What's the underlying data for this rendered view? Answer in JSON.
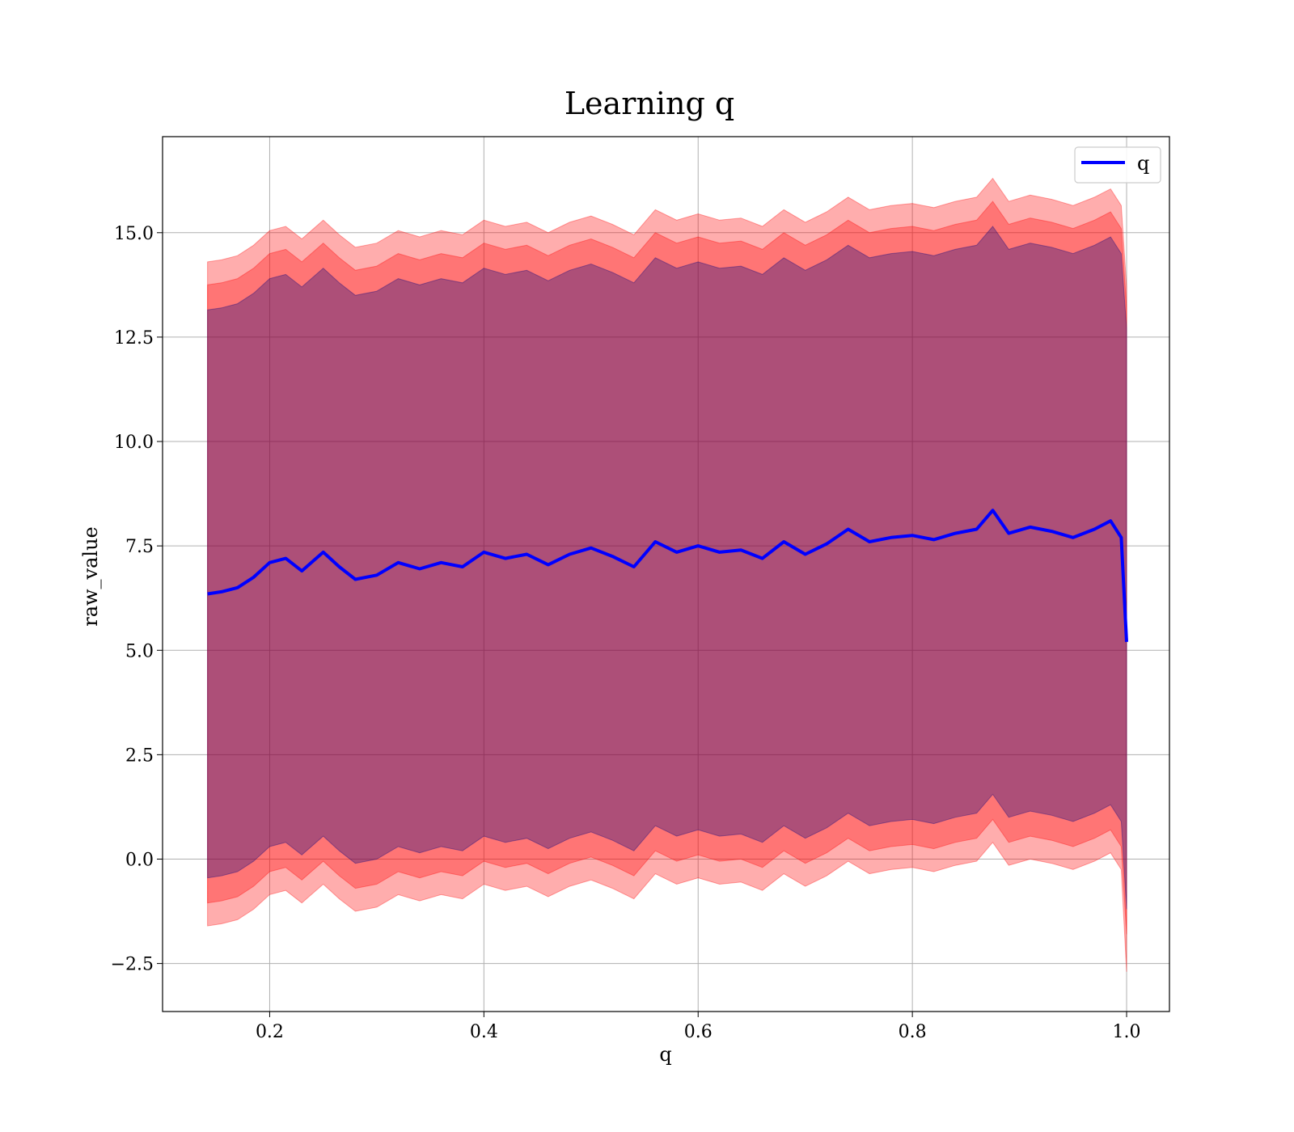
{
  "chart_data": {
    "type": "line",
    "title": "Learning q",
    "xlabel": "q",
    "ylabel": "raw_value",
    "xlim": [
      0.1,
      1.04
    ],
    "ylim": [
      -3.65,
      17.3
    ],
    "xticks": [
      0.2,
      0.4,
      0.6,
      0.8,
      1.0
    ],
    "xtick_labels": [
      "0.2",
      "0.4",
      "0.6",
      "0.8",
      "1.0"
    ],
    "yticks": [
      -2.5,
      0.0,
      2.5,
      5.0,
      7.5,
      10.0,
      12.5,
      15.0
    ],
    "ytick_labels": [
      "−2.5",
      "0.0",
      "2.5",
      "5.0",
      "7.5",
      "10.0",
      "12.5",
      "15.0"
    ],
    "grid": true,
    "legend": {
      "position": "top-right",
      "entries": [
        "q"
      ]
    },
    "series": [
      {
        "name": "q",
        "color": "#0000ff",
        "x": [
          0.142,
          0.155,
          0.17,
          0.185,
          0.2,
          0.215,
          0.23,
          0.25,
          0.265,
          0.28,
          0.3,
          0.32,
          0.34,
          0.36,
          0.38,
          0.4,
          0.42,
          0.44,
          0.46,
          0.48,
          0.5,
          0.52,
          0.54,
          0.56,
          0.58,
          0.6,
          0.62,
          0.64,
          0.66,
          0.68,
          0.7,
          0.72,
          0.74,
          0.76,
          0.78,
          0.8,
          0.82,
          0.84,
          0.86,
          0.875,
          0.89,
          0.91,
          0.93,
          0.95,
          0.97,
          0.985,
          0.995,
          1.0
        ],
        "y": [
          6.35,
          6.4,
          6.5,
          6.75,
          7.1,
          7.2,
          6.9,
          7.35,
          7.0,
          6.7,
          6.8,
          7.1,
          6.95,
          7.1,
          7.0,
          7.35,
          7.2,
          7.3,
          7.05,
          7.3,
          7.45,
          7.25,
          7.0,
          7.6,
          7.35,
          7.5,
          7.35,
          7.4,
          7.2,
          7.6,
          7.3,
          7.55,
          7.9,
          7.6,
          7.7,
          7.75,
          7.65,
          7.8,
          7.9,
          8.35,
          7.8,
          7.95,
          7.85,
          7.7,
          7.9,
          8.1,
          7.7,
          5.2
        ]
      }
    ],
    "bands": [
      {
        "color": "#ff0000",
        "opacity": 0.32,
        "x": [
          0.142,
          0.155,
          0.17,
          0.185,
          0.2,
          0.215,
          0.23,
          0.25,
          0.265,
          0.28,
          0.3,
          0.32,
          0.34,
          0.36,
          0.38,
          0.4,
          0.42,
          0.44,
          0.46,
          0.48,
          0.5,
          0.52,
          0.54,
          0.56,
          0.58,
          0.6,
          0.62,
          0.64,
          0.66,
          0.68,
          0.7,
          0.72,
          0.74,
          0.76,
          0.78,
          0.8,
          0.82,
          0.84,
          0.86,
          0.875,
          0.89,
          0.91,
          0.93,
          0.95,
          0.97,
          0.985,
          0.995,
          1.0
        ],
        "upper": [
          14.3,
          14.35,
          14.45,
          14.7,
          15.05,
          15.15,
          14.85,
          15.3,
          14.95,
          14.65,
          14.75,
          15.05,
          14.9,
          15.05,
          14.95,
          15.3,
          15.15,
          15.25,
          15.0,
          15.25,
          15.4,
          15.2,
          14.95,
          15.55,
          15.3,
          15.45,
          15.3,
          15.35,
          15.15,
          15.55,
          15.25,
          15.5,
          15.85,
          15.55,
          15.65,
          15.7,
          15.6,
          15.75,
          15.85,
          16.3,
          15.75,
          15.9,
          15.8,
          15.65,
          15.85,
          16.05,
          15.65,
          13.7
        ],
        "lower": [
          -1.6,
          -1.55,
          -1.45,
          -1.2,
          -0.85,
          -0.75,
          -1.05,
          -0.6,
          -0.95,
          -1.25,
          -1.15,
          -0.85,
          -1.0,
          -0.85,
          -0.95,
          -0.6,
          -0.75,
          -0.65,
          -0.9,
          -0.65,
          -0.5,
          -0.7,
          -0.95,
          -0.35,
          -0.6,
          -0.45,
          -0.6,
          -0.55,
          -0.75,
          -0.35,
          -0.65,
          -0.4,
          -0.05,
          -0.35,
          -0.25,
          -0.2,
          -0.3,
          -0.15,
          -0.05,
          0.4,
          -0.15,
          0.0,
          -0.1,
          -0.25,
          -0.05,
          0.15,
          -0.25,
          -2.7
        ]
      },
      {
        "color": "#ff0000",
        "opacity": 0.32,
        "x": [
          0.142,
          0.155,
          0.17,
          0.185,
          0.2,
          0.215,
          0.23,
          0.25,
          0.265,
          0.28,
          0.3,
          0.32,
          0.34,
          0.36,
          0.38,
          0.4,
          0.42,
          0.44,
          0.46,
          0.48,
          0.5,
          0.52,
          0.54,
          0.56,
          0.58,
          0.6,
          0.62,
          0.64,
          0.66,
          0.68,
          0.7,
          0.72,
          0.74,
          0.76,
          0.78,
          0.8,
          0.82,
          0.84,
          0.86,
          0.875,
          0.89,
          0.91,
          0.93,
          0.95,
          0.97,
          0.985,
          0.995,
          1.0
        ],
        "upper": [
          13.75,
          13.8,
          13.9,
          14.15,
          14.5,
          14.6,
          14.3,
          14.75,
          14.4,
          14.1,
          14.2,
          14.5,
          14.35,
          14.5,
          14.4,
          14.75,
          14.6,
          14.7,
          14.45,
          14.7,
          14.85,
          14.65,
          14.4,
          15.0,
          14.75,
          14.9,
          14.75,
          14.8,
          14.6,
          15.0,
          14.7,
          14.95,
          15.3,
          15.0,
          15.1,
          15.15,
          15.05,
          15.2,
          15.3,
          15.75,
          15.2,
          15.35,
          15.25,
          15.1,
          15.3,
          15.5,
          15.1,
          13.2
        ],
        "lower": [
          -1.05,
          -1.0,
          -0.9,
          -0.65,
          -0.3,
          -0.2,
          -0.5,
          -0.05,
          -0.4,
          -0.7,
          -0.6,
          -0.3,
          -0.45,
          -0.3,
          -0.4,
          -0.05,
          -0.2,
          -0.1,
          -0.35,
          -0.1,
          0.05,
          -0.15,
          -0.4,
          0.2,
          -0.05,
          0.1,
          -0.05,
          0.0,
          -0.2,
          0.2,
          -0.1,
          0.15,
          0.5,
          0.2,
          0.3,
          0.35,
          0.25,
          0.4,
          0.5,
          0.95,
          0.4,
          0.55,
          0.45,
          0.3,
          0.5,
          0.7,
          0.3,
          -1.8
        ]
      },
      {
        "color": "#000080",
        "opacity": 0.32,
        "x": [
          0.142,
          0.155,
          0.17,
          0.185,
          0.2,
          0.215,
          0.23,
          0.25,
          0.265,
          0.28,
          0.3,
          0.32,
          0.34,
          0.36,
          0.38,
          0.4,
          0.42,
          0.44,
          0.46,
          0.48,
          0.5,
          0.52,
          0.54,
          0.56,
          0.58,
          0.6,
          0.62,
          0.64,
          0.66,
          0.68,
          0.7,
          0.72,
          0.74,
          0.76,
          0.78,
          0.8,
          0.82,
          0.84,
          0.86,
          0.875,
          0.89,
          0.91,
          0.93,
          0.95,
          0.97,
          0.985,
          0.995,
          1.0
        ],
        "upper": [
          13.15,
          13.2,
          13.3,
          13.55,
          13.9,
          14.0,
          13.7,
          14.15,
          13.8,
          13.5,
          13.6,
          13.9,
          13.75,
          13.9,
          13.8,
          14.15,
          14.0,
          14.1,
          13.85,
          14.1,
          14.25,
          14.05,
          13.8,
          14.4,
          14.15,
          14.3,
          14.15,
          14.2,
          14.0,
          14.4,
          14.1,
          14.35,
          14.7,
          14.4,
          14.5,
          14.55,
          14.45,
          14.6,
          14.7,
          15.15,
          14.6,
          14.75,
          14.65,
          14.5,
          14.7,
          14.9,
          14.5,
          12.7
        ],
        "lower": [
          -0.45,
          -0.4,
          -0.3,
          -0.05,
          0.3,
          0.4,
          0.1,
          0.55,
          0.2,
          -0.1,
          0.0,
          0.3,
          0.15,
          0.3,
          0.2,
          0.55,
          0.4,
          0.5,
          0.25,
          0.5,
          0.65,
          0.45,
          0.2,
          0.8,
          0.55,
          0.7,
          0.55,
          0.6,
          0.4,
          0.8,
          0.5,
          0.75,
          1.1,
          0.8,
          0.9,
          0.95,
          0.85,
          1.0,
          1.1,
          1.55,
          1.0,
          1.15,
          1.05,
          0.9,
          1.1,
          1.3,
          0.9,
          -1.2
        ]
      }
    ]
  }
}
